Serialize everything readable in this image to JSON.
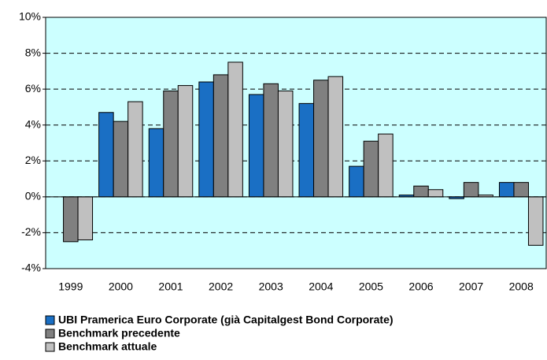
{
  "chart_data": {
    "type": "bar",
    "categories": [
      "1999",
      "2000",
      "2001",
      "2002",
      "2003",
      "2004",
      "2005",
      "2006",
      "2007",
      "2008"
    ],
    "series": [
      {
        "name": "UBI Pramerica Euro Corporate (già Capitalgest Bond Corporate)",
        "color": "#1a6fc4",
        "values": [
          null,
          4.7,
          3.8,
          6.4,
          5.7,
          5.2,
          1.7,
          0.1,
          -0.1,
          0.8
        ]
      },
      {
        "name": "Benchmark precedente",
        "color": "#808080",
        "values": [
          -2.5,
          4.2,
          5.9,
          6.8,
          6.3,
          6.5,
          3.1,
          0.6,
          0.8,
          0.8
        ]
      },
      {
        "name": "Benchmark attuale",
        "color": "#c0c0c0",
        "values": [
          -2.4,
          5.3,
          6.2,
          7.5,
          5.9,
          6.7,
          3.5,
          0.4,
          0.1,
          -2.7
        ]
      }
    ],
    "ylim": [
      -4,
      10
    ],
    "yticks": [
      {
        "value": -4,
        "label": "-4%"
      },
      {
        "value": -2,
        "label": "-2%"
      },
      {
        "value": 0,
        "label": "0%"
      },
      {
        "value": 2,
        "label": "2%"
      },
      {
        "value": 4,
        "label": "4%"
      },
      {
        "value": 6,
        "label": "6%"
      },
      {
        "value": 8,
        "label": "8%"
      },
      {
        "value": 10,
        "label": "10%"
      }
    ],
    "grid": true,
    "legend": "bottom",
    "plot_background": "#ccffff"
  }
}
